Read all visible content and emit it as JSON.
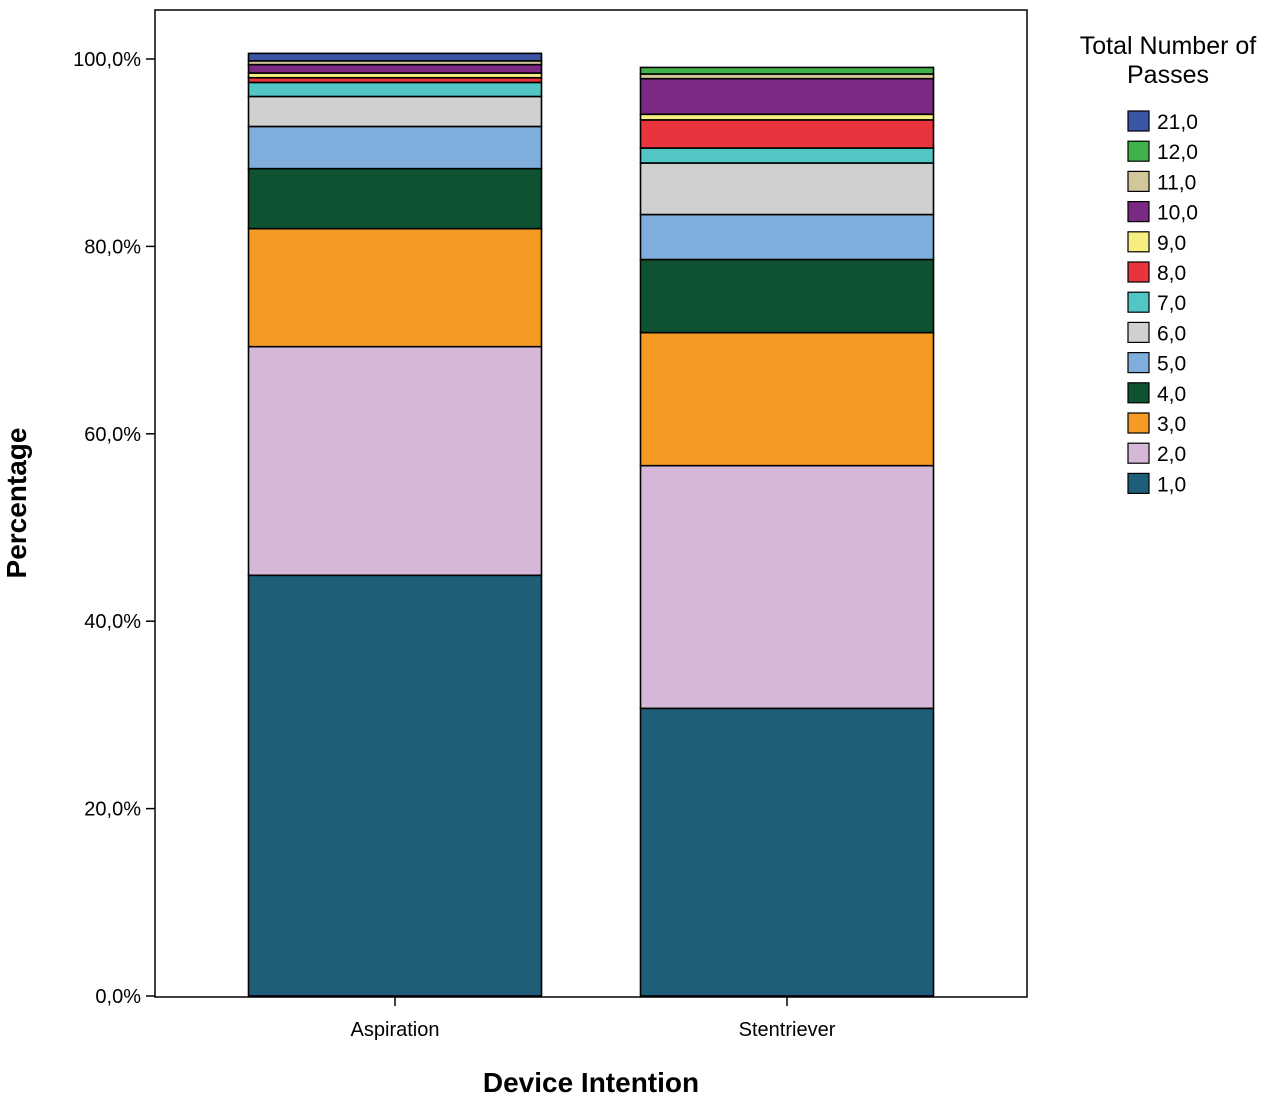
{
  "chart_data": {
    "type": "bar",
    "stacked": true,
    "xlabel": "Device Intention",
    "ylabel": "Percentage",
    "ylim": [
      0,
      100
    ],
    "yticks": [
      "0,0%",
      "20,0%",
      "40,0%",
      "60,0%",
      "80,0%",
      "100,0%"
    ],
    "grid": false,
    "legend": {
      "title_line1": "Total Number of",
      "title_line2": "Passes",
      "placement": "right",
      "order": "descending"
    },
    "categories": [
      "Aspiration",
      "Stentriever"
    ],
    "series": [
      {
        "name": "1,0",
        "color": "#1f5e78",
        "values": [
          44.9,
          30.7
        ]
      },
      {
        "name": "2,0",
        "color": "#d5b8d8",
        "values": [
          24.4,
          25.9
        ]
      },
      {
        "name": "3,0",
        "color": "#f59a23",
        "values": [
          12.6,
          14.2
        ]
      },
      {
        "name": "4,0",
        "color": "#0e5232",
        "values": [
          6.4,
          7.8
        ]
      },
      {
        "name": "5,0",
        "color": "#80aedc",
        "values": [
          4.5,
          4.8
        ]
      },
      {
        "name": "6,0",
        "color": "#d0d0d0",
        "values": [
          3.2,
          5.5
        ]
      },
      {
        "name": "7,0",
        "color": "#52c5c5",
        "values": [
          1.5,
          1.6
        ]
      },
      {
        "name": "8,0",
        "color": "#e8343c",
        "values": [
          0.5,
          3.0
        ]
      },
      {
        "name": "9,0",
        "color": "#f7ee80",
        "values": [
          0.5,
          0.6
        ]
      },
      {
        "name": "10,0",
        "color": "#7a2a82",
        "values": [
          0.9,
          3.8
        ]
      },
      {
        "name": "11,0",
        "color": "#d2c79b",
        "values": [
          0.4,
          0.5
        ]
      },
      {
        "name": "12,0",
        "color": "#3fb24a",
        "values": [
          0.0,
          0.7
        ]
      },
      {
        "name": "21,0",
        "color": "#3a56a4",
        "values": [
          0.8,
          0.0
        ]
      }
    ]
  }
}
